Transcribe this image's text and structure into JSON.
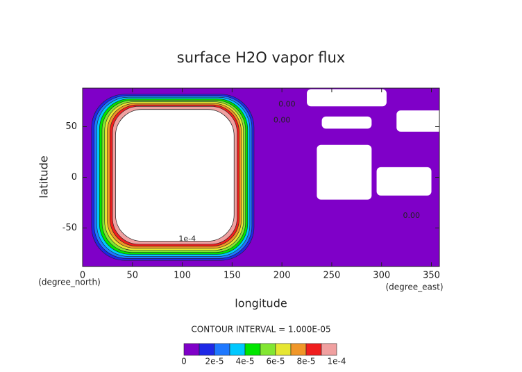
{
  "chart_data": {
    "type": "contour",
    "title": "surface H2O vapor flux",
    "xlabel": "longitude",
    "ylabel": "latitude",
    "x_unit": "(degree_east)",
    "y_unit": "(degree_north)",
    "contour_interval": "CONTOUR INTERVAL = 1.000E-05",
    "xlim": [
      0,
      358
    ],
    "ylim": [
      -88,
      88
    ],
    "xticks": [
      0,
      50,
      100,
      150,
      200,
      250,
      300,
      350
    ],
    "yticks": [
      -50,
      0,
      50
    ],
    "levels": [
      0,
      1e-05,
      2e-05,
      3e-05,
      4e-05,
      5e-05,
      6e-05,
      7e-05,
      8e-05,
      9e-05,
      0.0001
    ],
    "colors": [
      "#7f00c8",
      "#1e28e6",
      "#1e78ff",
      "#00c8ff",
      "#00e600",
      "#82e632",
      "#e6e632",
      "#f09628",
      "#f01e1e",
      "#f0a0a0"
    ],
    "colorbar_ticks": [
      0,
      {
        "value": 2e-05,
        "label": "2e-5"
      },
      {
        "value": 4e-05,
        "label": "4e-5"
      },
      {
        "value": 6e-05,
        "label": "6e-5"
      },
      {
        "value": 8e-05,
        "label": "8e-5"
      },
      {
        "value": 0.0001,
        "label": "1e-4"
      }
    ],
    "contour_labels": [
      {
        "value": 0,
        "label": "0.00"
      },
      {
        "value": 0,
        "label": "0.00"
      },
      {
        "value": 0,
        "label": "0.00"
      },
      {
        "value": 0.0001,
        "label": "1e-4"
      }
    ]
  }
}
